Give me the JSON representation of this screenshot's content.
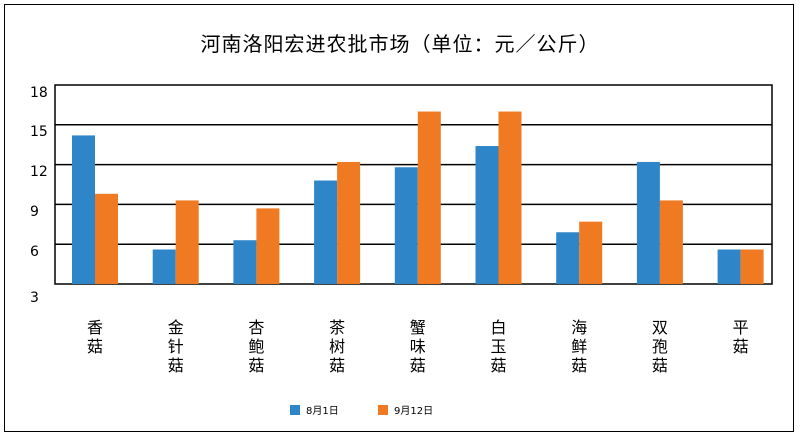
{
  "chart_data": {
    "type": "bar",
    "title": "河南洛阳宏进农批市场（单位：元／公斤）",
    "categories": [
      "香菇",
      "金针菇",
      "杏鲍菇",
      "茶树菇",
      "蟹味菇",
      "白玉菇",
      "海鲜菇",
      "双孢菇",
      "平菇"
    ],
    "series": [
      {
        "name": "8月1日",
        "color": "#2e86c8",
        "values": [
          14.2,
          5.6,
          6.3,
          10.8,
          11.8,
          13.4,
          6.9,
          12.2,
          5.6
        ]
      },
      {
        "name": "9月12日",
        "color": "#f07a22",
        "values": [
          9.8,
          9.3,
          8.7,
          12.2,
          16.0,
          16.0,
          7.7,
          9.3,
          5.6
        ]
      }
    ],
    "y_ticks": [
      "18",
      "15",
      "12",
      "9",
      "6",
      "3"
    ],
    "ylim": [
      3,
      18
    ],
    "grid": true,
    "legend": "bottom"
  }
}
